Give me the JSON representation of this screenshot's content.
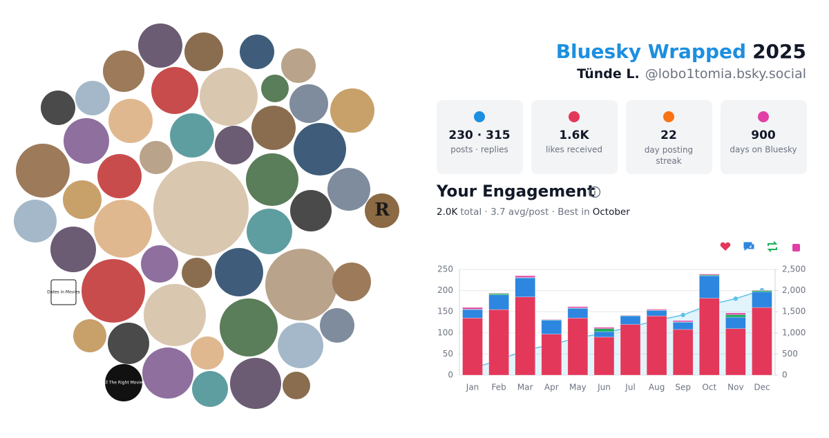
{
  "header": {
    "title": "Bluesky Wrapped",
    "year": "2025",
    "name": "Tünde L.",
    "handle": "@lobo1tomia.bsky.social"
  },
  "stats": [
    {
      "value": "230 · 315",
      "label": "posts · replies"
    },
    {
      "value": "1.6K",
      "label": "likes received"
    },
    {
      "value": "22",
      "label": "day posting streak"
    },
    {
      "value": "900",
      "label": "days on Bluesky"
    }
  ],
  "collage": {
    "labels": [
      "Dates in Movies",
      "All The Right Movies",
      "R"
    ]
  },
  "engagement": {
    "title": "Your Engagement",
    "total": "2.0K",
    "middle": "total · 3.7 avg/post · Best in",
    "best": "October"
  },
  "chart_data": {
    "type": "bar",
    "stacked": true,
    "categories": [
      "Jan",
      "Feb",
      "Mar",
      "Apr",
      "May",
      "Jun",
      "Jul",
      "Aug",
      "Sep",
      "Oct",
      "Nov",
      "Dec"
    ],
    "series": [
      {
        "color": "#e3385a",
        "values": [
          135,
          155,
          185,
          97,
          135,
          90,
          120,
          140,
          108,
          182,
          110,
          160
        ]
      },
      {
        "color": "#2d86e0",
        "values": [
          20,
          35,
          45,
          33,
          23,
          13,
          20,
          13,
          17,
          53,
          27,
          37
        ]
      },
      {
        "color": "#1fae5b",
        "values": [
          1,
          3,
          1,
          1,
          1,
          7,
          1,
          1,
          1,
          2,
          6,
          3
        ]
      },
      {
        "color": "#e23fa6",
        "values": [
          4,
          1,
          4,
          1,
          3,
          3,
          1,
          2,
          3,
          2,
          4,
          1
        ]
      },
      {
        "type": "line",
        "axis": "y2",
        "color": "#5cc2e8",
        "values": [
          160,
          354,
          589,
          721,
          883,
          996,
          1138,
          1294,
          1423,
          1662,
          1809,
          2010
        ]
      }
    ],
    "ylim": [
      0,
      250
    ],
    "yticks": [
      0,
      50,
      100,
      150,
      200,
      250
    ],
    "y2lim": [
      0,
      2500
    ],
    "y2ticks": [
      {
        "value": 0,
        "label": "0"
      },
      {
        "value": 500,
        "label": "500"
      },
      {
        "value": 1000,
        "label": "1,000"
      },
      {
        "value": 1500,
        "label": "1,500"
      },
      {
        "value": 2000,
        "label": "2,000"
      },
      {
        "value": 2500,
        "label": "2,500"
      }
    ],
    "grid": true
  }
}
